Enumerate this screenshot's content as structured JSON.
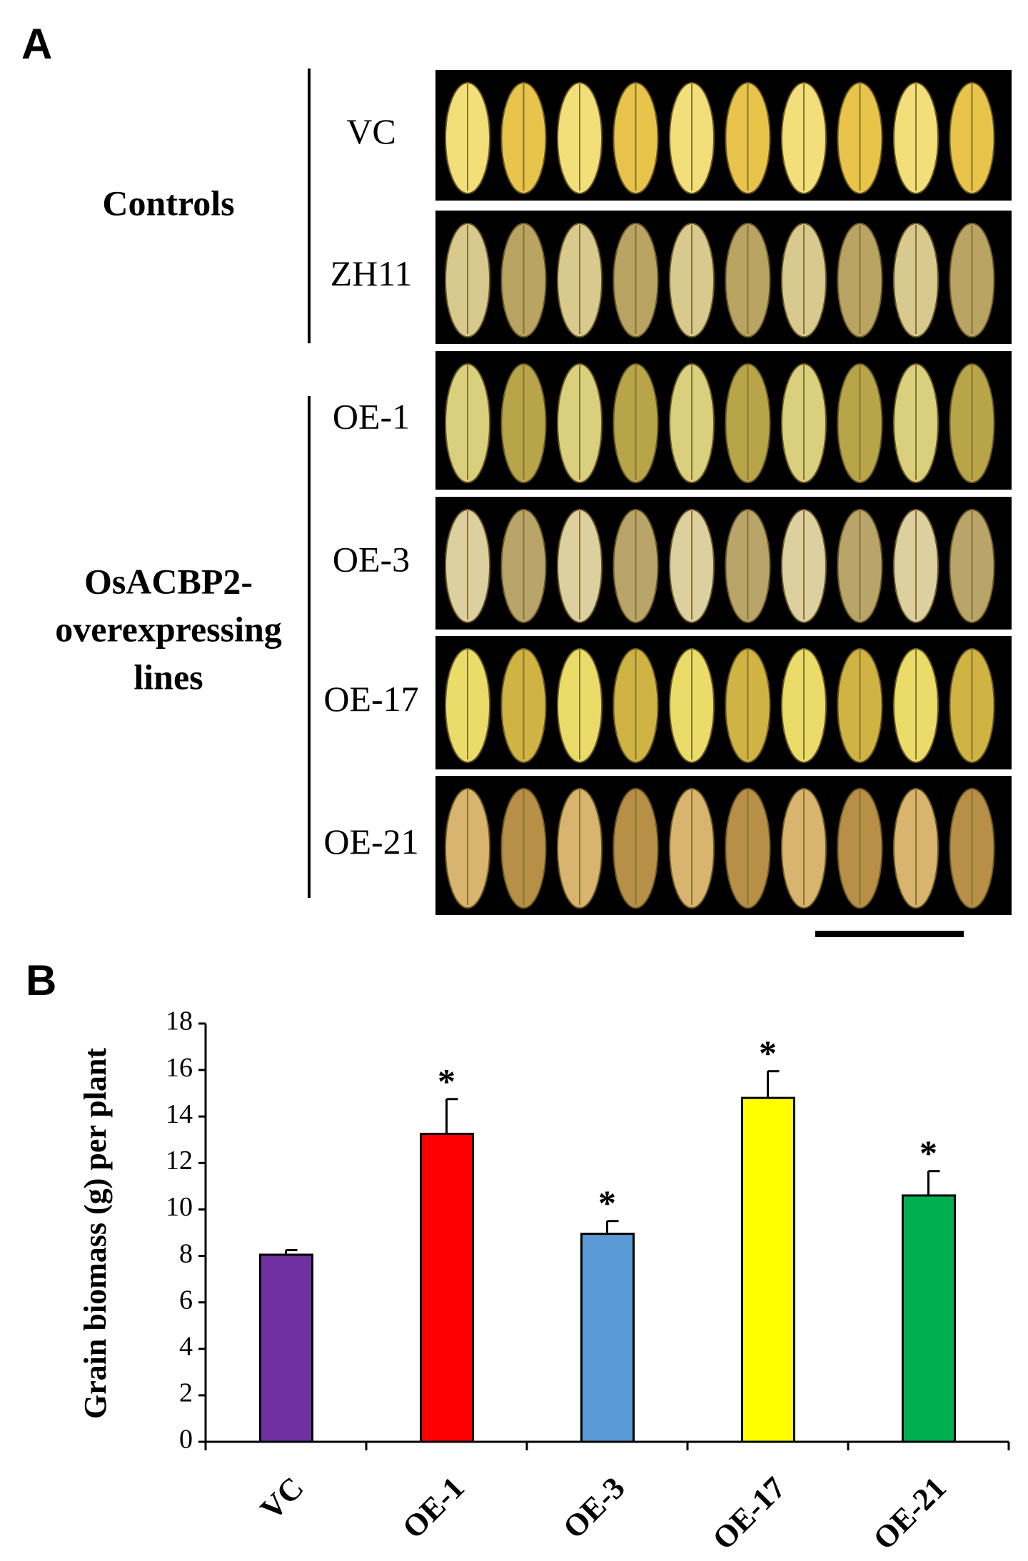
{
  "panel_a": {
    "label": "A",
    "groups": [
      {
        "label_lines": [
          "Controls"
        ],
        "rows": [
          "VC",
          "ZH11"
        ]
      },
      {
        "label_lines": [
          "OsACBP2-",
          "overexpressing",
          "lines"
        ],
        "rows": [
          "OE-1",
          "OE-3",
          "OE-17",
          "OE-21"
        ]
      }
    ]
  },
  "chart_data": {
    "type": "bar",
    "panel_label": "B",
    "y_label": "Grain biomass (g) per plant",
    "categories": [
      "VC",
      "OE-1",
      "OE-3",
      "OE-17",
      "OE-21"
    ],
    "values": [
      8.05,
      13.25,
      8.95,
      14.8,
      10.6
    ],
    "errors": [
      0.2,
      1.5,
      0.55,
      1.15,
      1.05
    ],
    "colors": [
      "#7030a0",
      "#ff0000",
      "#5b9bd5",
      "#ffff00",
      "#00b050"
    ],
    "significance": [
      null,
      "*",
      "*",
      "*",
      "*"
    ],
    "ylim": [
      0,
      18
    ],
    "yticks": [
      0,
      2,
      4,
      6,
      8,
      10,
      12,
      14,
      16,
      18
    ],
    "grid": false
  }
}
